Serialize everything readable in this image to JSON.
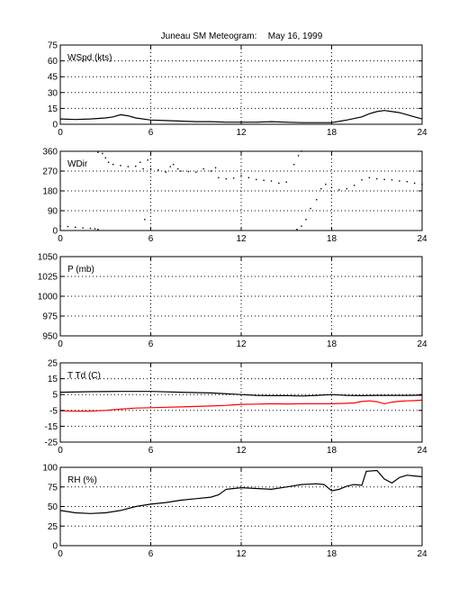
{
  "figure": {
    "title": "Juneau SM Meteogram:",
    "date": "May 16, 1999"
  },
  "chart_data": [
    {
      "type": "line",
      "label": "WSpd (kts)",
      "xlim": [
        0,
        24
      ],
      "ylim": [
        0,
        75
      ],
      "xticks": [
        0,
        6,
        12,
        18,
        24
      ],
      "yticks": [
        0,
        15,
        30,
        45,
        60,
        75
      ],
      "grid": true,
      "series": [
        {
          "color": "#000000",
          "style": "line",
          "points": [
            [
              0,
              5
            ],
            [
              1,
              4.5
            ],
            [
              2,
              5
            ],
            [
              3,
              6
            ],
            [
              3.5,
              7
            ],
            [
              4,
              9
            ],
            [
              4.5,
              8
            ],
            [
              5,
              6
            ],
            [
              6,
              4
            ],
            [
              7,
              3.5
            ],
            [
              8,
              3
            ],
            [
              9,
              2.5
            ],
            [
              10,
              2.5
            ],
            [
              11,
              2
            ],
            [
              12,
              2
            ],
            [
              13,
              2
            ],
            [
              14,
              2.5
            ],
            [
              15,
              2
            ],
            [
              16,
              1.5
            ],
            [
              17,
              1.5
            ],
            [
              18,
              1.5
            ],
            [
              19,
              4
            ],
            [
              20,
              7
            ],
            [
              20.5,
              10
            ],
            [
              21,
              12
            ],
            [
              21.5,
              13
            ],
            [
              22,
              12
            ],
            [
              22.5,
              11
            ],
            [
              23,
              9
            ],
            [
              23.5,
              7
            ],
            [
              24,
              5
            ]
          ]
        }
      ]
    },
    {
      "type": "scatter",
      "label": "WDir",
      "xlim": [
        0,
        24
      ],
      "ylim": [
        0,
        360
      ],
      "xticks": [
        0,
        6,
        12,
        18,
        24
      ],
      "yticks": [
        0,
        90,
        180,
        270,
        360
      ],
      "grid": true,
      "series": [
        {
          "color": "#000000",
          "style": "dots",
          "points": [
            [
              0,
              20
            ],
            [
              0.5,
              18
            ],
            [
              1,
              15
            ],
            [
              1.5,
              12
            ],
            [
              2,
              10
            ],
            [
              2.3,
              8
            ],
            [
              2.5,
              5
            ],
            [
              2.5,
              355
            ],
            [
              2.8,
              350
            ],
            [
              3,
              330
            ],
            [
              3.2,
              310
            ],
            [
              3.5,
              300
            ],
            [
              4,
              295
            ],
            [
              4.5,
              290
            ],
            [
              5,
              292
            ],
            [
              5.3,
              310
            ],
            [
              5.5,
              280
            ],
            [
              5.6,
              50
            ],
            [
              5.8,
              320
            ],
            [
              6,
              280
            ],
            [
              6.5,
              275
            ],
            [
              7,
              265
            ],
            [
              7.3,
              290
            ],
            [
              7.5,
              300
            ],
            [
              7.8,
              280
            ],
            [
              8,
              270
            ],
            [
              8.5,
              268
            ],
            [
              9,
              265
            ],
            [
              9.5,
              280
            ],
            [
              10,
              270
            ],
            [
              10.3,
              285
            ],
            [
              10.5,
              240
            ],
            [
              11,
              235
            ],
            [
              11.5,
              238
            ],
            [
              12,
              250
            ],
            [
              12.5,
              240
            ],
            [
              13,
              232
            ],
            [
              13.5,
              228
            ],
            [
              14,
              225
            ],
            [
              14.5,
              215
            ],
            [
              15,
              220
            ],
            [
              15.5,
              300
            ],
            [
              15.8,
              340
            ],
            [
              16,
              360
            ],
            [
              15.7,
              5
            ],
            [
              16,
              20
            ],
            [
              16.3,
              50
            ],
            [
              16.6,
              100
            ],
            [
              17,
              140
            ],
            [
              17.3,
              190
            ],
            [
              17.6,
              210
            ],
            [
              18,
              195
            ],
            [
              18.5,
              185
            ],
            [
              19,
              190
            ],
            [
              19.5,
              205
            ],
            [
              20,
              230
            ],
            [
              20.5,
              240
            ],
            [
              21,
              235
            ],
            [
              21.5,
              232
            ],
            [
              22,
              230
            ],
            [
              22.5,
              225
            ],
            [
              23,
              222
            ],
            [
              23.5,
              215
            ],
            [
              24,
              210
            ]
          ]
        }
      ]
    },
    {
      "type": "line",
      "label": "P (mb)",
      "xlim": [
        0,
        24
      ],
      "ylim": [
        950,
        1050
      ],
      "xticks": [
        0,
        6,
        12,
        18,
        24
      ],
      "yticks": [
        950,
        975,
        1000,
        1025,
        1050
      ],
      "grid": true,
      "series": []
    },
    {
      "type": "line",
      "label": "T Td (C)",
      "xlim": [
        0,
        24
      ],
      "ylim": [
        -25,
        25
      ],
      "xticks": [
        0,
        6,
        12,
        18,
        24
      ],
      "yticks": [
        -25,
        -15,
        -5,
        5,
        15,
        25
      ],
      "grid": true,
      "series": [
        {
          "color": "#000000",
          "style": "line",
          "points": [
            [
              0,
              6.5
            ],
            [
              2,
              6.8
            ],
            [
              4,
              7
            ],
            [
              6,
              7
            ],
            [
              8,
              6.5
            ],
            [
              10,
              6
            ],
            [
              12,
              5
            ],
            [
              13,
              4.5
            ],
            [
              14,
              4.3
            ],
            [
              15,
              4.4
            ],
            [
              16,
              4.1
            ],
            [
              17,
              4.5
            ],
            [
              18,
              5
            ],
            [
              18.5,
              4.7
            ],
            [
              19,
              4.5
            ],
            [
              20,
              4.3
            ],
            [
              21,
              4.5
            ],
            [
              22,
              4.5
            ],
            [
              23,
              4.5
            ],
            [
              24,
              4.6
            ]
          ]
        },
        {
          "color": "#ff0000",
          "style": "line",
          "points": [
            [
              0,
              -5.2
            ],
            [
              1,
              -5.5
            ],
            [
              2,
              -5.4
            ],
            [
              3,
              -5
            ],
            [
              4,
              -4.2
            ],
            [
              5,
              -3.5
            ],
            [
              6,
              -3.3
            ],
            [
              7,
              -3
            ],
            [
              8,
              -2.8
            ],
            [
              9,
              -2.5
            ],
            [
              10,
              -2.2
            ],
            [
              11,
              -1.8
            ],
            [
              12,
              -1.2
            ],
            [
              13,
              -1
            ],
            [
              14,
              -0.8
            ],
            [
              15,
              -0.9
            ],
            [
              16,
              -0.8
            ],
            [
              17,
              -0.8
            ],
            [
              18,
              -0.8
            ],
            [
              19,
              -0.5
            ],
            [
              19.5,
              -0.3
            ],
            [
              20,
              0.6
            ],
            [
              20.5,
              1
            ],
            [
              21,
              0.5
            ],
            [
              21.5,
              -0.8
            ],
            [
              22,
              0.2
            ],
            [
              22.5,
              0.8
            ],
            [
              23,
              1
            ],
            [
              23.5,
              1.2
            ],
            [
              24,
              1.5
            ]
          ]
        }
      ]
    },
    {
      "type": "line",
      "label": "RH (%)",
      "xlim": [
        0,
        24
      ],
      "ylim": [
        0,
        100
      ],
      "xticks": [
        0,
        6,
        12,
        18,
        24
      ],
      "yticks": [
        0,
        25,
        50,
        75,
        100
      ],
      "grid": true,
      "series": [
        {
          "color": "#000000",
          "style": "line",
          "points": [
            [
              0,
              45
            ],
            [
              1,
              42
            ],
            [
              2,
              41
            ],
            [
              3,
              42
            ],
            [
              4,
              45
            ],
            [
              5,
              50
            ],
            [
              6,
              53
            ],
            [
              7,
              55
            ],
            [
              8,
              58
            ],
            [
              9,
              60
            ],
            [
              10,
              62
            ],
            [
              10.5,
              65
            ],
            [
              11,
              72
            ],
            [
              12,
              74
            ],
            [
              13,
              73
            ],
            [
              14,
              72
            ],
            [
              15,
              75
            ],
            [
              16,
              78
            ],
            [
              17,
              79
            ],
            [
              17.5,
              78
            ],
            [
              18,
              70
            ],
            [
              18.5,
              72
            ],
            [
              19,
              76
            ],
            [
              19.5,
              78
            ],
            [
              20,
              77
            ],
            [
              20.3,
              95
            ],
            [
              21,
              96
            ],
            [
              21.5,
              85
            ],
            [
              22,
              80
            ],
            [
              22.5,
              87
            ],
            [
              23,
              90
            ],
            [
              23.5,
              89
            ],
            [
              24,
              88
            ]
          ]
        }
      ]
    }
  ]
}
